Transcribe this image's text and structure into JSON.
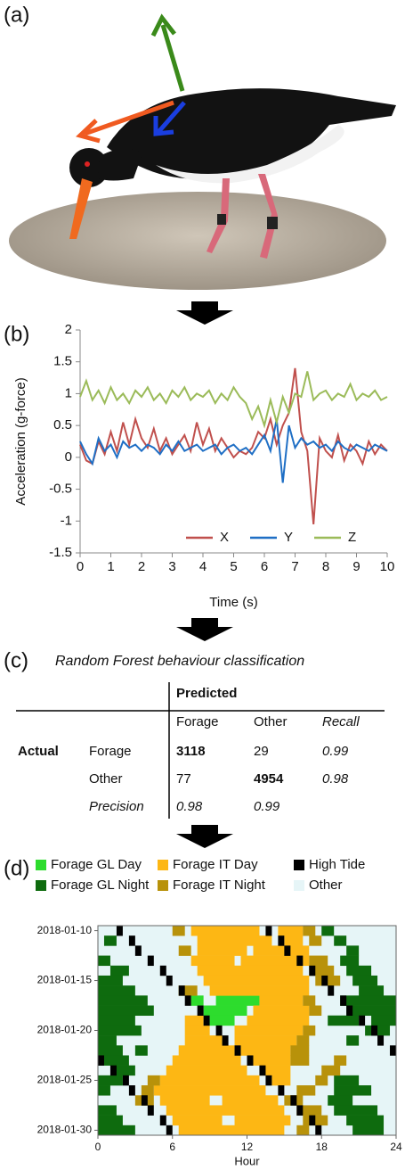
{
  "labels": [
    "(a)",
    "(b)",
    "(c)",
    "(d)"
  ],
  "chart_data": [
    {
      "type": "line",
      "xlabel": "Time (s)",
      "ylabel": "Acceleration (g-force)",
      "x": [
        0,
        0.2,
        0.4,
        0.6,
        0.8,
        1,
        1.2,
        1.4,
        1.6,
        1.8,
        2,
        2.2,
        2.4,
        2.6,
        2.8,
        3,
        3.2,
        3.4,
        3.6,
        3.8,
        4,
        4.2,
        4.4,
        4.6,
        4.8,
        5,
        5.2,
        5.4,
        5.6,
        5.8,
        6,
        6.2,
        6.4,
        6.6,
        6.8,
        7,
        7.2,
        7.4,
        7.6,
        7.8,
        8,
        8.2,
        8.4,
        8.6,
        8.8,
        9,
        9.2,
        9.4,
        9.6,
        9.8,
        10
      ],
      "series": [
        {
          "name": "X",
          "color": "#c0504d",
          "values": [
            0.2,
            -0.05,
            -0.1,
            0.25,
            0.05,
            0.4,
            0.1,
            0.55,
            0.2,
            0.6,
            0.3,
            0.15,
            0.45,
            0.1,
            0.3,
            0.05,
            0.2,
            0.35,
            0.1,
            0.55,
            0.2,
            0.45,
            0.1,
            0.3,
            0.15,
            0.0,
            0.1,
            0.05,
            0.15,
            0.4,
            0.3,
            0.6,
            0.2,
            0.5,
            0.7,
            1.4,
            0.4,
            0.1,
            -1.05,
            0.3,
            0.1,
            0.0,
            0.35,
            -0.05,
            0.2,
            0.1,
            -0.1,
            0.25,
            0.05,
            0.2,
            0.1
          ]
        },
        {
          "name": "Y",
          "color": "#1f6fc5",
          "values": [
            0.25,
            0.05,
            -0.1,
            0.3,
            0.1,
            0.2,
            0.0,
            0.25,
            0.15,
            0.2,
            0.1,
            0.2,
            0.15,
            0.05,
            0.2,
            0.1,
            0.25,
            0.1,
            0.15,
            0.2,
            0.1,
            0.15,
            0.2,
            0.05,
            0.15,
            0.2,
            0.1,
            0.15,
            0.05,
            0.2,
            0.35,
            0.1,
            0.6,
            -0.4,
            0.5,
            0.15,
            0.3,
            0.2,
            0.25,
            0.15,
            0.2,
            0.1,
            0.25,
            0.15,
            0.1,
            0.2,
            0.15,
            0.1,
            0.2,
            0.15,
            0.1
          ]
        },
        {
          "name": "Z",
          "color": "#9bbb59",
          "values": [
            0.95,
            1.2,
            0.9,
            1.05,
            0.85,
            1.1,
            0.9,
            1.0,
            0.85,
            1.05,
            0.95,
            1.1,
            0.9,
            1.0,
            0.85,
            1.05,
            0.95,
            1.1,
            0.9,
            1.0,
            0.95,
            1.05,
            0.85,
            1.0,
            0.9,
            1.1,
            0.95,
            0.85,
            0.6,
            0.8,
            0.5,
            0.9,
            0.55,
            0.95,
            0.7,
            1.0,
            0.95,
            1.35,
            0.9,
            1.0,
            1.05,
            0.9,
            1.0,
            0.95,
            1.15,
            0.9,
            1.0,
            0.95,
            1.05,
            0.9,
            0.95
          ]
        }
      ],
      "xlim": [
        0,
        10
      ],
      "xticks": [
        0,
        1,
        2,
        3,
        4,
        5,
        6,
        7,
        8,
        9,
        10
      ],
      "ylim": [
        -1.5,
        2
      ],
      "yticks": [
        -1.5,
        -1,
        -0.5,
        0,
        0.5,
        1,
        1.5,
        2
      ],
      "legend": "lower right",
      "grid": false
    },
    {
      "type": "raster",
      "xlabel": "Hour",
      "categories": [
        "2018-01-10",
        null,
        null,
        null,
        null,
        "2018-01-15",
        null,
        null,
        null,
        null,
        "2018-01-20",
        null,
        null,
        null,
        null,
        "2018-01-25",
        null,
        null,
        null,
        null,
        "2018-01-30"
      ],
      "xlim": [
        0,
        24
      ],
      "xticks": [
        0,
        6,
        12,
        18,
        24
      ],
      "series": [
        {
          "name": "Forage GL Day",
          "color": "#2ddc2d",
          "segments": [
            [],
            [],
            [],
            [],
            [],
            [],
            [],
            [
              [
                7.5,
                8.5
              ],
              [
                9.5,
                13
              ]
            ],
            [
              [
                8.5,
                12
              ]
            ],
            [
              [
                9,
                11
              ]
            ],
            [],
            [],
            [],
            [],
            [],
            [],
            [],
            [],
            [],
            [],
            []
          ]
        },
        {
          "name": "Forage GL Night",
          "color": "#0e6b0e",
          "segments": [
            [
              [
                18,
                19
              ]
            ],
            [
              [
                0.5,
                1.5
              ],
              [
                19,
                20
              ]
            ],
            [
              [
                20,
                21
              ]
            ],
            [
              [
                0,
                1
              ],
              [
                19.5,
                21
              ]
            ],
            [
              [
                1,
                2.5
              ],
              [
                20,
                22
              ]
            ],
            [
              [
                0,
                2
              ],
              [
                20.5,
                22.5
              ]
            ],
            [
              [
                0,
                3
              ],
              [
                21,
                23
              ]
            ],
            [
              [
                0,
                4
              ],
              [
                19.5,
                24
              ]
            ],
            [
              [
                0,
                4.5
              ],
              [
                20,
                24
              ]
            ],
            [
              [
                0,
                3
              ],
              [
                18.5,
                21
              ],
              [
                22,
                24
              ]
            ],
            [
              [
                0,
                3.5
              ],
              [
                21.5,
                23.5
              ]
            ],
            [
              [
                0,
                1.5
              ],
              [
                20,
                21
              ]
            ],
            [
              [
                0,
                2
              ],
              [
                3,
                4
              ]
            ],
            [
              [
                0,
                2.5
              ]
            ],
            [
              [
                1,
                3
              ]
            ],
            [
              [
                0,
                2
              ],
              [
                19,
                21
              ]
            ],
            [
              [
                0,
                1
              ],
              [
                19,
                22
              ]
            ],
            [
              [
                18.5,
                20.5
              ]
            ],
            [
              [
                0,
                1.5
              ],
              [
                19,
                22.5
              ]
            ],
            [
              [
                0,
                2
              ],
              [
                20,
                23
              ]
            ],
            [
              [
                0,
                3
              ],
              [
                20.5,
                23
              ]
            ]
          ]
        },
        {
          "name": "Forage IT Day",
          "color": "#fdb714",
          "segments": [
            [
              [
                7.5,
                13
              ],
              [
                14.5,
                16.5
              ]
            ],
            [
              [
                8,
                14
              ],
              [
                15,
                16.5
              ]
            ],
            [
              [
                8,
                12
              ],
              [
                12.5,
                17
              ]
            ],
            [
              [
                7.5,
                11
              ],
              [
                11.5,
                17
              ]
            ],
            [
              [
                8,
                16.5
              ]
            ],
            [
              [
                8.5,
                17
              ]
            ],
            [
              [
                9,
                17
              ]
            ],
            [
              [
                13,
                16.5
              ]
            ],
            [
              [
                12.5,
                17
              ]
            ],
            [
              [
                7,
                8.5
              ],
              [
                12,
                17
              ]
            ],
            [
              [
                7,
                9
              ],
              [
                11,
                16.5
              ]
            ],
            [
              [
                7,
                10
              ],
              [
                11,
                16
              ]
            ],
            [
              [
                6.5,
                11
              ],
              [
                11.5,
                15.5
              ]
            ],
            [
              [
                6,
                11.5
              ],
              [
                12,
                15.5
              ]
            ],
            [
              [
                5.5,
                12
              ],
              [
                13,
                15.5
              ]
            ],
            [
              [
                5,
                13
              ],
              [
                14,
                15.5
              ]
            ],
            [
              [
                4.5,
                13.5
              ]
            ],
            [
              [
                5,
                9
              ],
              [
                10,
                14.5
              ]
            ],
            [
              [
                5.5,
                15
              ]
            ],
            [
              [
                6,
                10
              ],
              [
                11,
                15.5
              ]
            ],
            [
              [
                6.5,
                15
              ]
            ]
          ]
        },
        {
          "name": "Forage IT Night",
          "color": "#b8920a",
          "segments": [
            [
              [
                16.5,
                17.5
              ],
              [
                6,
                7
              ]
            ],
            [
              [
                17,
                18
              ]
            ],
            [
              [
                6.5,
                7.5
              ]
            ],
            [
              [
                17,
                18.5
              ]
            ],
            [
              [
                17,
                19
              ]
            ],
            [
              [
                17.5,
                19.5
              ]
            ],
            [
              [
                6.5,
                8
              ]
            ],
            [
              [
                16.5,
                17.5
              ]
            ],
            [
              [
                17,
                18
              ]
            ],
            [],
            [
              [
                16.5,
                17.5
              ]
            ],
            [
              [
                16,
                17
              ]
            ],
            [
              [
                15.5,
                17
              ]
            ],
            [
              [
                15.5,
                17
              ],
              [
                19,
                20
              ]
            ],
            [
              [
                18,
                19.5
              ]
            ],
            [
              [
                4,
                5
              ],
              [
                17.5,
                18.5
              ]
            ],
            [
              [
                3.5,
                4.5
              ],
              [
                16,
                17.5
              ]
            ],
            [
              [
                3,
                4.5
              ],
              [
                15,
                16.5
              ]
            ],
            [
              [
                16,
                18
              ]
            ],
            [
              [
                16.5,
                18.5
              ]
            ],
            [
              [
                16,
                17
              ]
            ]
          ]
        },
        {
          "name": "High Tide",
          "color": "#000000",
          "segments": [
            [
              [
                1.5,
                2
              ],
              [
                13.5,
                14
              ]
            ],
            [
              [
                2.5,
                3
              ],
              [
                14.5,
                15
              ]
            ],
            [
              [
                3,
                3.5
              ],
              [
                15,
                15.5
              ]
            ],
            [
              [
                4,
                4.5
              ],
              [
                16,
                16.5
              ]
            ],
            [
              [
                5,
                5.5
              ],
              [
                17,
                17.5
              ]
            ],
            [
              [
                5.5,
                6
              ],
              [
                18,
                18.5
              ]
            ],
            [
              [
                6.5,
                7
              ],
              [
                18.5,
                19
              ]
            ],
            [
              [
                7,
                7.5
              ],
              [
                19.5,
                20
              ]
            ],
            [
              [
                8,
                8.5
              ],
              [
                20,
                20.5
              ]
            ],
            [
              [
                8.5,
                9
              ],
              [
                21,
                21.5
              ]
            ],
            [
              [
                9.5,
                10
              ],
              [
                22,
                22.5
              ]
            ],
            [
              [
                10,
                10.5
              ],
              [
                22.5,
                23
              ]
            ],
            [
              [
                11,
                11.5
              ],
              [
                23.5,
                24
              ]
            ],
            [
              [
                0,
                0.5
              ],
              [
                12,
                12.5
              ]
            ],
            [
              [
                1,
                1.5
              ],
              [
                13,
                13.5
              ]
            ],
            [
              [
                2,
                2.5
              ],
              [
                13.5,
                14
              ]
            ],
            [
              [
                2.5,
                3
              ],
              [
                14.5,
                15
              ]
            ],
            [
              [
                3.5,
                4
              ],
              [
                15.5,
                16
              ]
            ],
            [
              [
                4,
                4.5
              ],
              [
                16,
                16.5
              ]
            ],
            [
              [
                5,
                5.5
              ],
              [
                17,
                17.5
              ]
            ],
            [
              [
                5.5,
                6
              ],
              [
                17.5,
                18
              ]
            ]
          ]
        },
        {
          "name": "Other",
          "color": "#e6f5f7"
        }
      ]
    }
  ],
  "table": {
    "title": "Random Forest behaviour classification",
    "header": "Predicted",
    "columns": [
      "Forage",
      "Other",
      "Recall"
    ],
    "row_header": "Actual",
    "rows": [
      {
        "label": "Forage",
        "cells": [
          "3118",
          "29",
          "0.99"
        ]
      },
      {
        "label": "Other",
        "cells": [
          "77",
          "4954",
          "0.98"
        ]
      },
      {
        "label": "Precision",
        "cells": [
          "0.98",
          "0.99"
        ]
      }
    ]
  }
}
